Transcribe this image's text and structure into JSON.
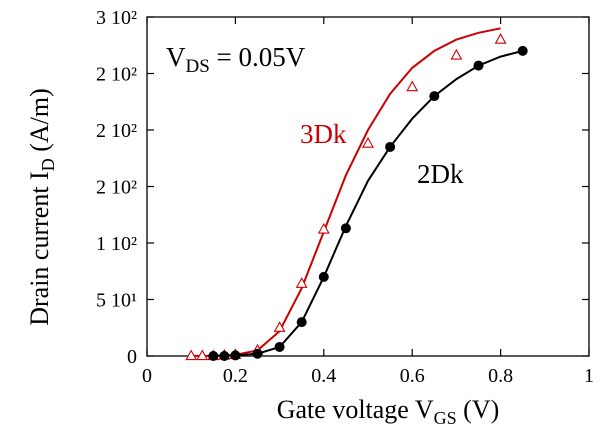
{
  "chart_data": {
    "type": "line",
    "xlabel": {
      "main": "Gate voltage V",
      "sub": "GS",
      "unit": " (V)"
    },
    "ylabel": {
      "main": "Drain current I",
      "sub": "D",
      "unit": " (A/m)"
    },
    "xlim": [
      0,
      1
    ],
    "ylim": [
      0,
      300
    ],
    "x_ticks": [
      {
        "value": 0,
        "label": "0"
      },
      {
        "value": 0.2,
        "label": "0.2"
      },
      {
        "value": 0.4,
        "label": "0.4"
      },
      {
        "value": 0.6,
        "label": "0.6"
      },
      {
        "value": 0.8,
        "label": "0.8"
      },
      {
        "value": 1,
        "label": "1"
      }
    ],
    "y_ticks": [
      {
        "value": 0,
        "label": "0"
      },
      {
        "value": 50,
        "label": "5 10¹"
      },
      {
        "value": 100,
        "label": "1 10²"
      },
      {
        "value": 150,
        "label": "2 10²"
      },
      {
        "value": 200,
        "label": "2 10²"
      },
      {
        "value": 250,
        "label": "2 10²"
      },
      {
        "value": 300,
        "label": "3 10²"
      }
    ],
    "annotation": {
      "main": "V",
      "sub": "DS",
      "rest": " = 0.05V"
    },
    "grid": false,
    "series": [
      {
        "name": "3Dk",
        "color": "#cc0000",
        "marker": "open-triangle",
        "curve": [
          [
            0.1,
            0
          ],
          [
            0.15,
            0.3
          ],
          [
            0.2,
            1
          ],
          [
            0.25,
            5
          ],
          [
            0.3,
            22
          ],
          [
            0.35,
            60
          ],
          [
            0.4,
            110
          ],
          [
            0.45,
            160
          ],
          [
            0.5,
            200
          ],
          [
            0.55,
            232
          ],
          [
            0.6,
            255
          ],
          [
            0.65,
            270
          ],
          [
            0.7,
            280
          ],
          [
            0.75,
            286
          ],
          [
            0.8,
            290
          ]
        ],
        "points": [
          [
            0.1,
            0
          ],
          [
            0.125,
            0
          ],
          [
            0.15,
            0
          ],
          [
            0.175,
            0.5
          ],
          [
            0.2,
            1
          ],
          [
            0.25,
            5
          ],
          [
            0.3,
            25
          ],
          [
            0.35,
            64
          ],
          [
            0.4,
            112
          ],
          [
            0.5,
            188
          ],
          [
            0.6,
            238
          ],
          [
            0.7,
            266
          ],
          [
            0.8,
            280
          ]
        ]
      },
      {
        "name": "2Dk",
        "color": "#000000",
        "marker": "filled-circle",
        "curve": [
          [
            0.15,
            0
          ],
          [
            0.2,
            0.5
          ],
          [
            0.25,
            2
          ],
          [
            0.3,
            8
          ],
          [
            0.35,
            30
          ],
          [
            0.4,
            70
          ],
          [
            0.45,
            115
          ],
          [
            0.5,
            155
          ],
          [
            0.55,
            185
          ],
          [
            0.6,
            210
          ],
          [
            0.65,
            230
          ],
          [
            0.7,
            245
          ],
          [
            0.75,
            257
          ],
          [
            0.8,
            265
          ],
          [
            0.85,
            270
          ]
        ],
        "points": [
          [
            0.15,
            0
          ],
          [
            0.175,
            0
          ],
          [
            0.2,
            0.5
          ],
          [
            0.25,
            2
          ],
          [
            0.3,
            8
          ],
          [
            0.35,
            30
          ],
          [
            0.4,
            70
          ],
          [
            0.45,
            113
          ],
          [
            0.55,
            185
          ],
          [
            0.65,
            230
          ],
          [
            0.75,
            257
          ],
          [
            0.85,
            270
          ]
        ]
      }
    ]
  }
}
